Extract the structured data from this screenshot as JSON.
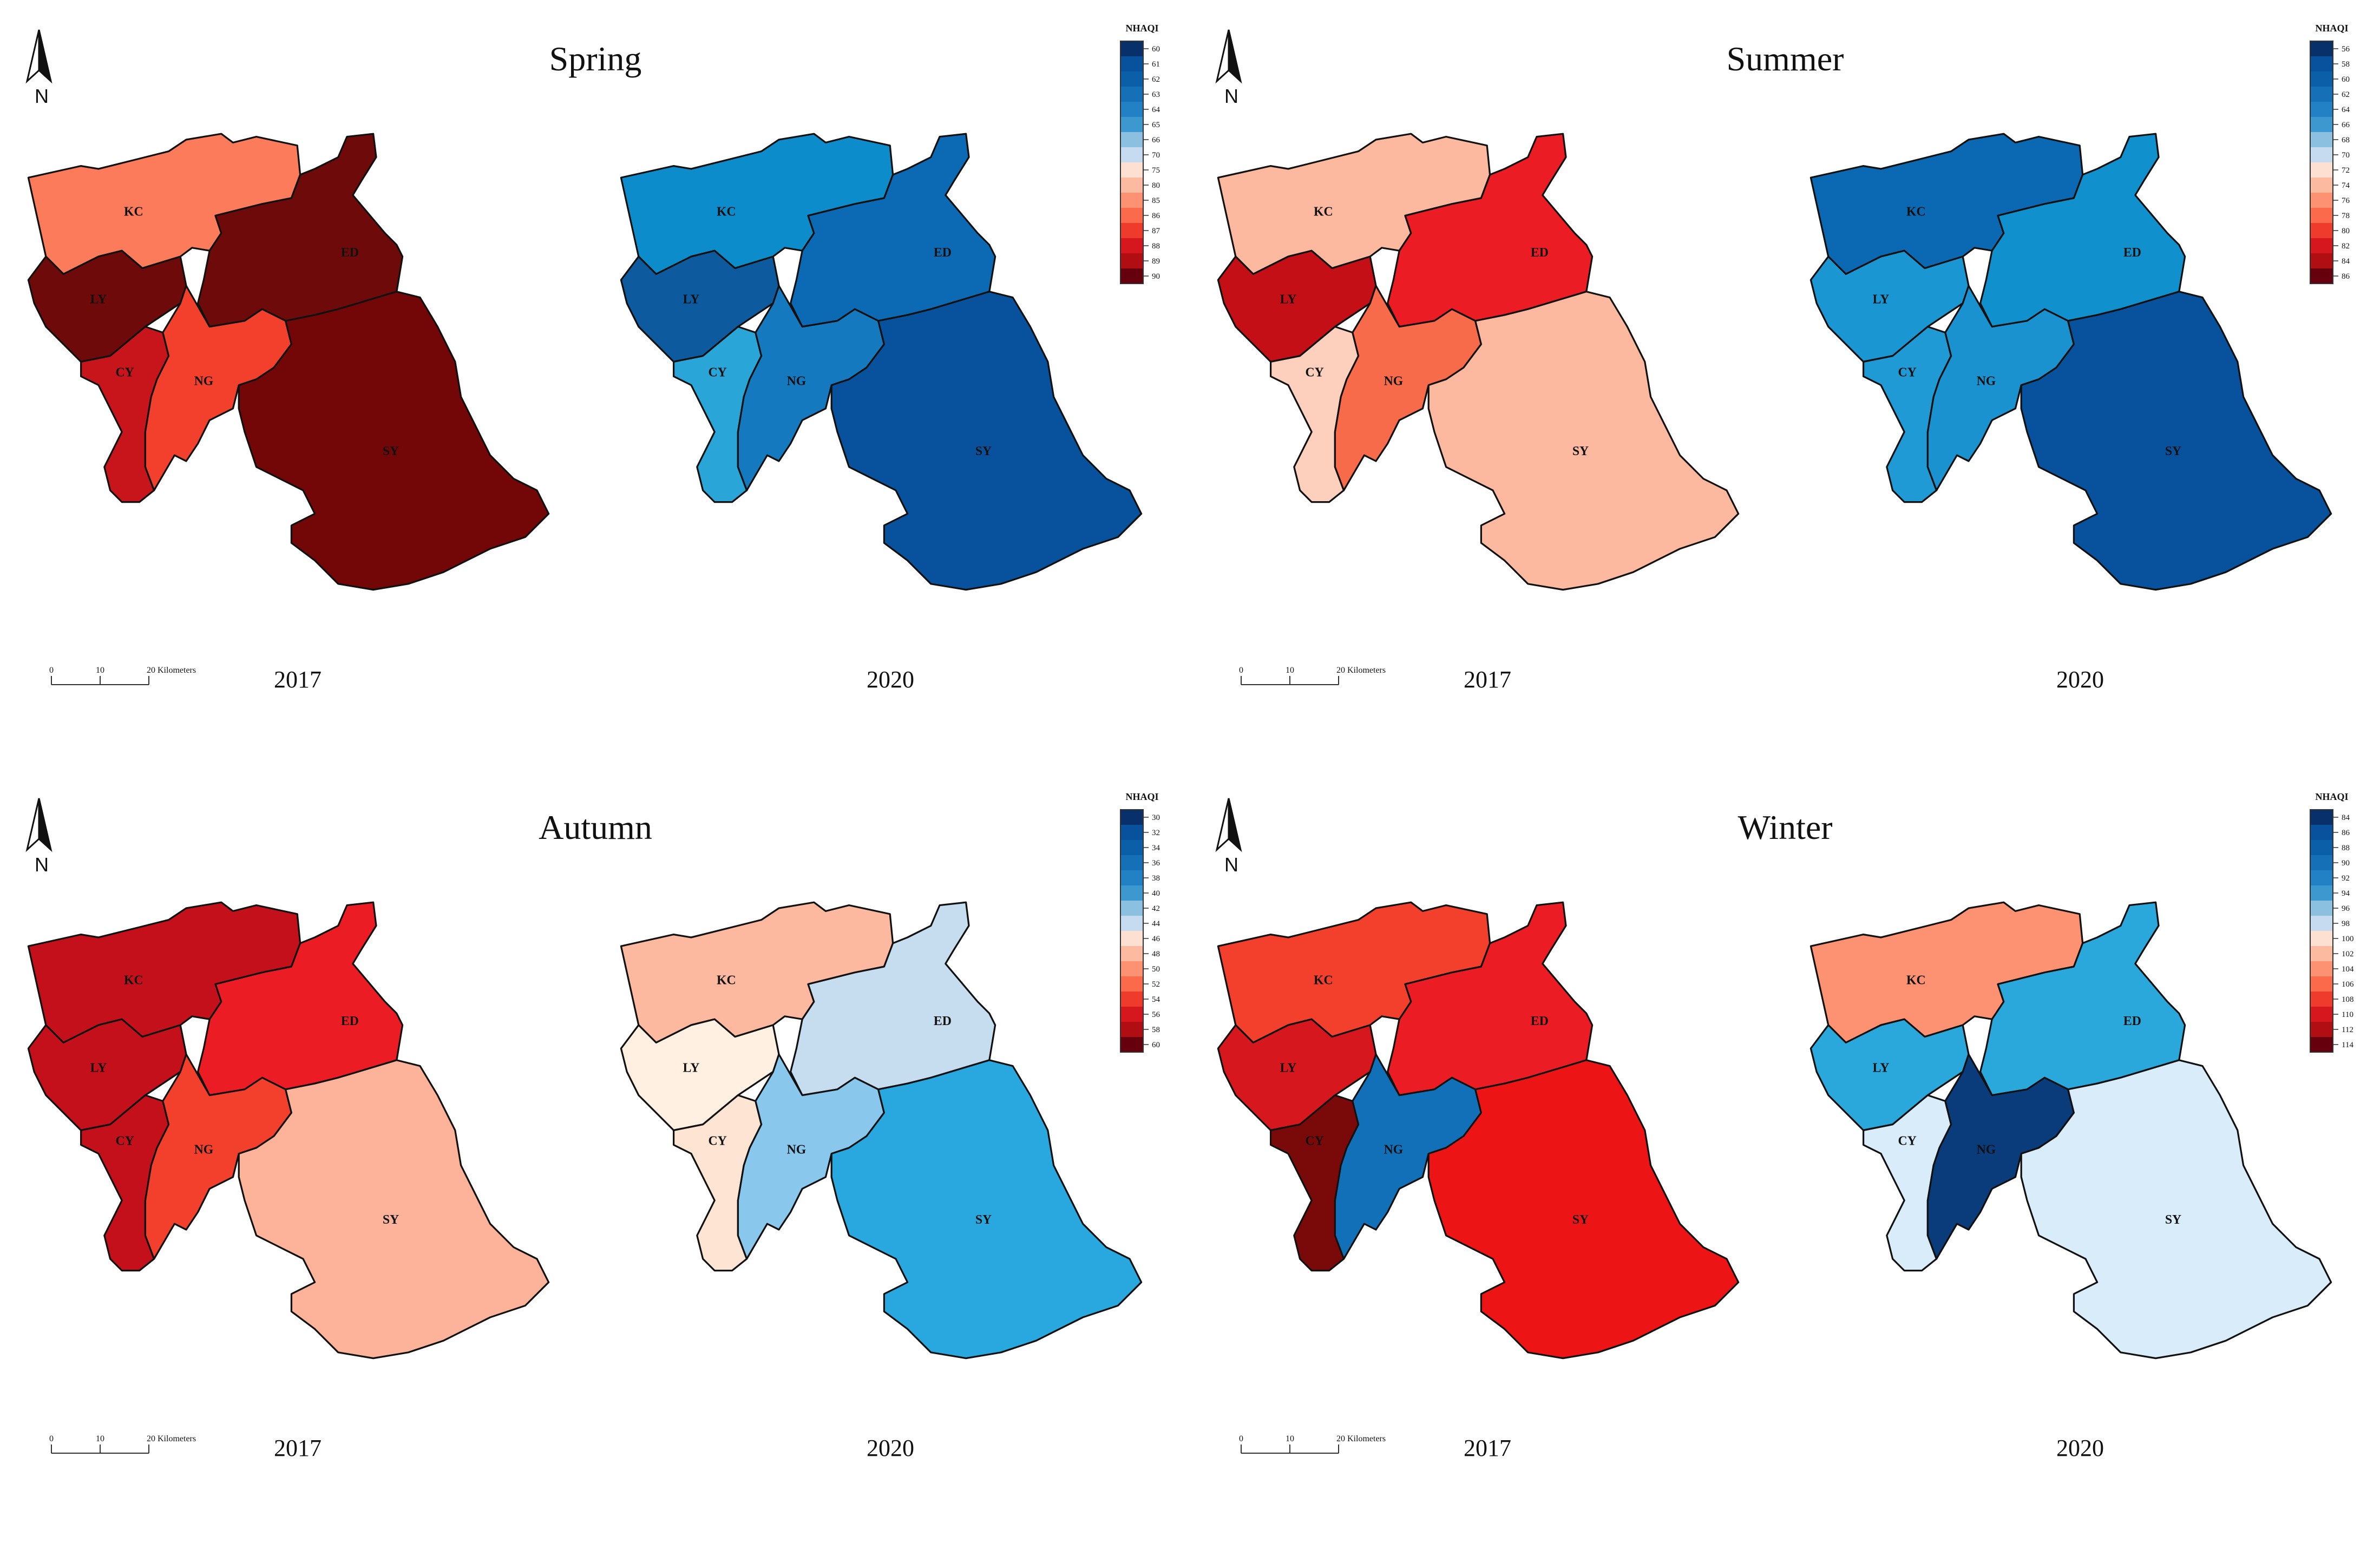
{
  "legend_title": "NHAQI",
  "north_label": "N",
  "scale_labels": [
    "0",
    "10",
    "20 Kilometers"
  ],
  "districts": [
    "KC",
    "LY",
    "ED",
    "CY",
    "NG",
    "SY"
  ],
  "chart_data": [
    {
      "type": "choropleth-map",
      "title": "Spring",
      "years": [
        "2017",
        "2020"
      ],
      "legend": {
        "title": "NHAQI",
        "ticks": [
          "60",
          "61",
          "62",
          "63",
          "64",
          "65",
          "66",
          "70",
          "75",
          "80",
          "85",
          "86",
          "87",
          "88",
          "89",
          "90"
        ],
        "colors": [
          "#08306b",
          "#08519c",
          "#0b5fa8",
          "#1570b8",
          "#2181c4",
          "#3d98cf",
          "#8cc0e1",
          "#c6dbef",
          "#fde0d2",
          "#fcbba1",
          "#fc9272",
          "#fb6a4a",
          "#ef3b2c",
          "#d7171e",
          "#b10e14",
          "#67000d"
        ]
      },
      "colors": {
        "2017": {
          "KC": "#fc7b5a",
          "LY": "#6e0a0a",
          "ED": "#6e0a0a",
          "CY": "#c8151b",
          "NG": "#f2402c",
          "SY": "#730606"
        },
        "2020": {
          "KC": "#0d8ccb",
          "LY": "#0d5a9e",
          "ED": "#0b6ab3",
          "CY": "#2aa5d8",
          "NG": "#1479bf",
          "SY": "#08519c"
        }
      }
    },
    {
      "type": "choropleth-map",
      "title": "Summer",
      "years": [
        "2017",
        "2020"
      ],
      "legend": {
        "title": "NHAQI",
        "ticks": [
          "56",
          "58",
          "60",
          "62",
          "64",
          "66",
          "68",
          "70",
          "72",
          "74",
          "76",
          "78",
          "80",
          "82",
          "84",
          "86"
        ],
        "colors": [
          "#08306b",
          "#08519c",
          "#0b5fa8",
          "#1570b8",
          "#2181c4",
          "#3d98cf",
          "#8cc0e1",
          "#c6dbef",
          "#fde0d2",
          "#fcbba1",
          "#fc9272",
          "#fb6a4a",
          "#ef3b2c",
          "#d7171e",
          "#b10e14",
          "#67000d"
        ]
      },
      "colors": {
        "2017": {
          "KC": "#fcb9a0",
          "LY": "#c40f17",
          "ED": "#ec1c24",
          "CY": "#fdd0bd",
          "NG": "#f76b4a",
          "SY": "#fcb9a0"
        },
        "2020": {
          "KC": "#0b68b2",
          "LY": "#1a96d2",
          "ED": "#1090cc",
          "CY": "#1f9ad4",
          "NG": "#1a92cf",
          "SY": "#08519c"
        }
      }
    },
    {
      "type": "choropleth-map",
      "title": "Autumn",
      "years": [
        "2017",
        "2020"
      ],
      "legend": {
        "title": "NHAQI",
        "ticks": [
          "30",
          "32",
          "34",
          "36",
          "38",
          "40",
          "42",
          "44",
          "46",
          "48",
          "50",
          "52",
          "54",
          "56",
          "58",
          "60"
        ],
        "colors": [
          "#08306b",
          "#08519c",
          "#0b5fa8",
          "#1570b8",
          "#2181c4",
          "#3d98cf",
          "#8cc0e1",
          "#c6dbef",
          "#fde0d2",
          "#fcbba1",
          "#fc9272",
          "#fb6a4a",
          "#ef3b2c",
          "#d7171e",
          "#b10e14",
          "#67000d"
        ]
      },
      "colors": {
        "2017": {
          "KC": "#c4101a",
          "LY": "#c4101a",
          "ED": "#ec1c24",
          "CY": "#c4101a",
          "NG": "#f2402c",
          "SY": "#fcb39a"
        },
        "2020": {
          "KC": "#fcb9a0",
          "LY": "#fff0e2",
          "ED": "#c6dcef",
          "CY": "#fde4d3",
          "NG": "#89c7ec",
          "SY": "#29a8df"
        }
      }
    },
    {
      "type": "choropleth-map",
      "title": "Winter",
      "years": [
        "2017",
        "2020"
      ],
      "legend": {
        "title": "NHAQI",
        "ticks": [
          "84",
          "86",
          "88",
          "90",
          "92",
          "94",
          "96",
          "98",
          "100",
          "102",
          "104",
          "106",
          "108",
          "110",
          "112",
          "114"
        ],
        "colors": [
          "#08306b",
          "#08519c",
          "#0b5fa8",
          "#1570b8",
          "#2181c4",
          "#3d98cf",
          "#8cc0e1",
          "#c6dbef",
          "#fde0d2",
          "#fcbba1",
          "#fc9272",
          "#fb6a4a",
          "#ef3b2c",
          "#d7171e",
          "#b10e14",
          "#67000d"
        ]
      },
      "colors": {
        "2017": {
          "KC": "#f2402c",
          "LY": "#d7171e",
          "ED": "#ec1c24",
          "CY": "#7a0a0a",
          "NG": "#1270b8",
          "SY": "#ec1414"
        },
        "2020": {
          "KC": "#fc9272",
          "LY": "#2aa8dc",
          "ED": "#2aa8dc",
          "CY": "#d9ecfa",
          "NG": "#0a3b7a",
          "SY": "#d9ecfa"
        }
      }
    }
  ]
}
